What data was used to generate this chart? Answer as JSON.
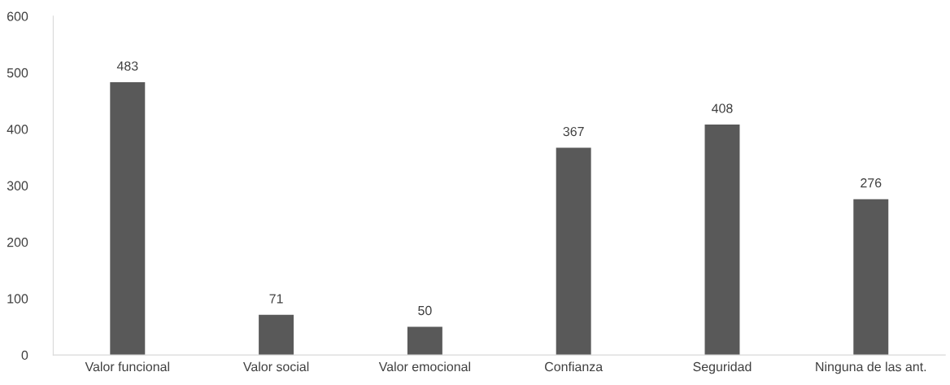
{
  "chart_data": {
    "type": "bar",
    "categories": [
      "Valor funcional",
      "Valor social",
      "Valor emocional",
      "Confianza",
      "Seguridad",
      "Ninguna de las ant."
    ],
    "values": [
      483,
      71,
      50,
      367,
      408,
      276
    ],
    "color": "#595959",
    "ylim": [
      0,
      600
    ],
    "yticks": [
      0,
      100,
      200,
      300,
      400,
      500,
      600
    ],
    "grid": false,
    "data_labels": true
  }
}
